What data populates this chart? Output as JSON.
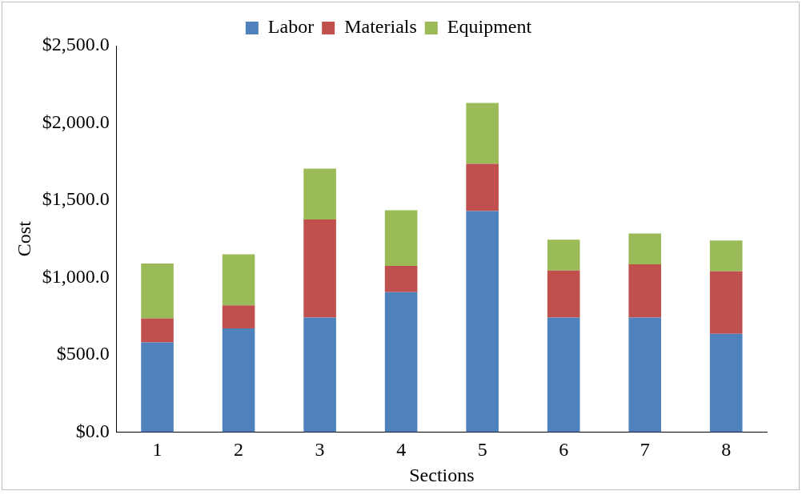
{
  "chart_data": {
    "type": "bar",
    "stacked": true,
    "xlabel": "Sections",
    "ylabel": "Cost",
    "categories": [
      "1",
      "2",
      "3",
      "4",
      "5",
      "6",
      "7",
      "8"
    ],
    "series": [
      {
        "name": "Labor",
        "color": "#4f81bd",
        "values": [
          580,
          670,
          740,
          905,
          1430,
          740,
          740,
          635
        ]
      },
      {
        "name": "Materials",
        "color": "#c0504d",
        "values": [
          155,
          150,
          635,
          170,
          305,
          305,
          345,
          405
        ]
      },
      {
        "name": "Equipment",
        "color": "#9bbb59",
        "values": [
          355,
          330,
          330,
          360,
          395,
          200,
          200,
          200
        ]
      }
    ],
    "ylim": [
      0,
      2500
    ],
    "yticks": [
      {
        "value": 0,
        "label": "$0.0"
      },
      {
        "value": 500,
        "label": "$500.0"
      },
      {
        "value": 1000,
        "label": "$1,000.0"
      },
      {
        "value": 1500,
        "label": "$1,500.0"
      },
      {
        "value": 2000,
        "label": "$2,000.0"
      },
      {
        "value": 2500,
        "label": "$2,500.0"
      }
    ],
    "grid": false,
    "legend": "top"
  }
}
